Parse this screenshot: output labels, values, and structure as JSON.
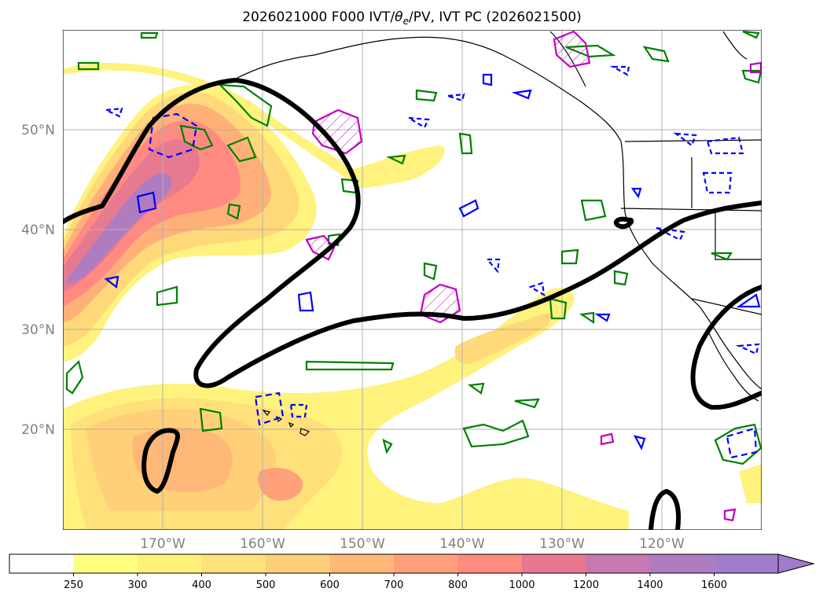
{
  "title_prefix": "2026021000 F000 IVT/",
  "title_theta": "θ",
  "title_sub": "e",
  "title_suffix": "/PV, IVT PC (2026021500)",
  "lon_ticks": [
    "170°W",
    "160°W",
    "150°W",
    "140°W",
    "130°W",
    "120°W"
  ],
  "lat_ticks": [
    "50°N",
    "40°N",
    "30°N",
    "20°N"
  ],
  "colorbar": {
    "labels": [
      "250",
      "300",
      "400",
      "500",
      "600",
      "700",
      "800",
      "1000",
      "1200",
      "1400",
      "1600"
    ],
    "colors": [
      "#ffffff",
      "#ffff80",
      "#fff07a",
      "#ffe07a",
      "#ffd078",
      "#ffb878",
      "#ffa07a",
      "#ff8a80",
      "#e87890",
      "#c878b0",
      "#b07cc0",
      "#a07ccc"
    ],
    "extend": "max"
  },
  "map": {
    "region": "North Pacific, Hawaii to western North America",
    "lon_range": [
      -180,
      -110
    ],
    "lat_range": [
      10,
      60
    ],
    "gridlines": true,
    "fields": {
      "ivt_shading": "filled contours of integrated vapor transport",
      "ivt_pc_contour": "thick black contour",
      "pv_contours": "green",
      "theta_e_contours": "blue dashed and solid",
      "other_contours": "magenta hatched"
    },
    "colors": {
      "ivt_pc": "#000000",
      "green": "#008000",
      "blue": "#0000ff",
      "magenta": "#c000c0",
      "land_outline": "#000000",
      "grid": "#b0b0b0"
    }
  }
}
